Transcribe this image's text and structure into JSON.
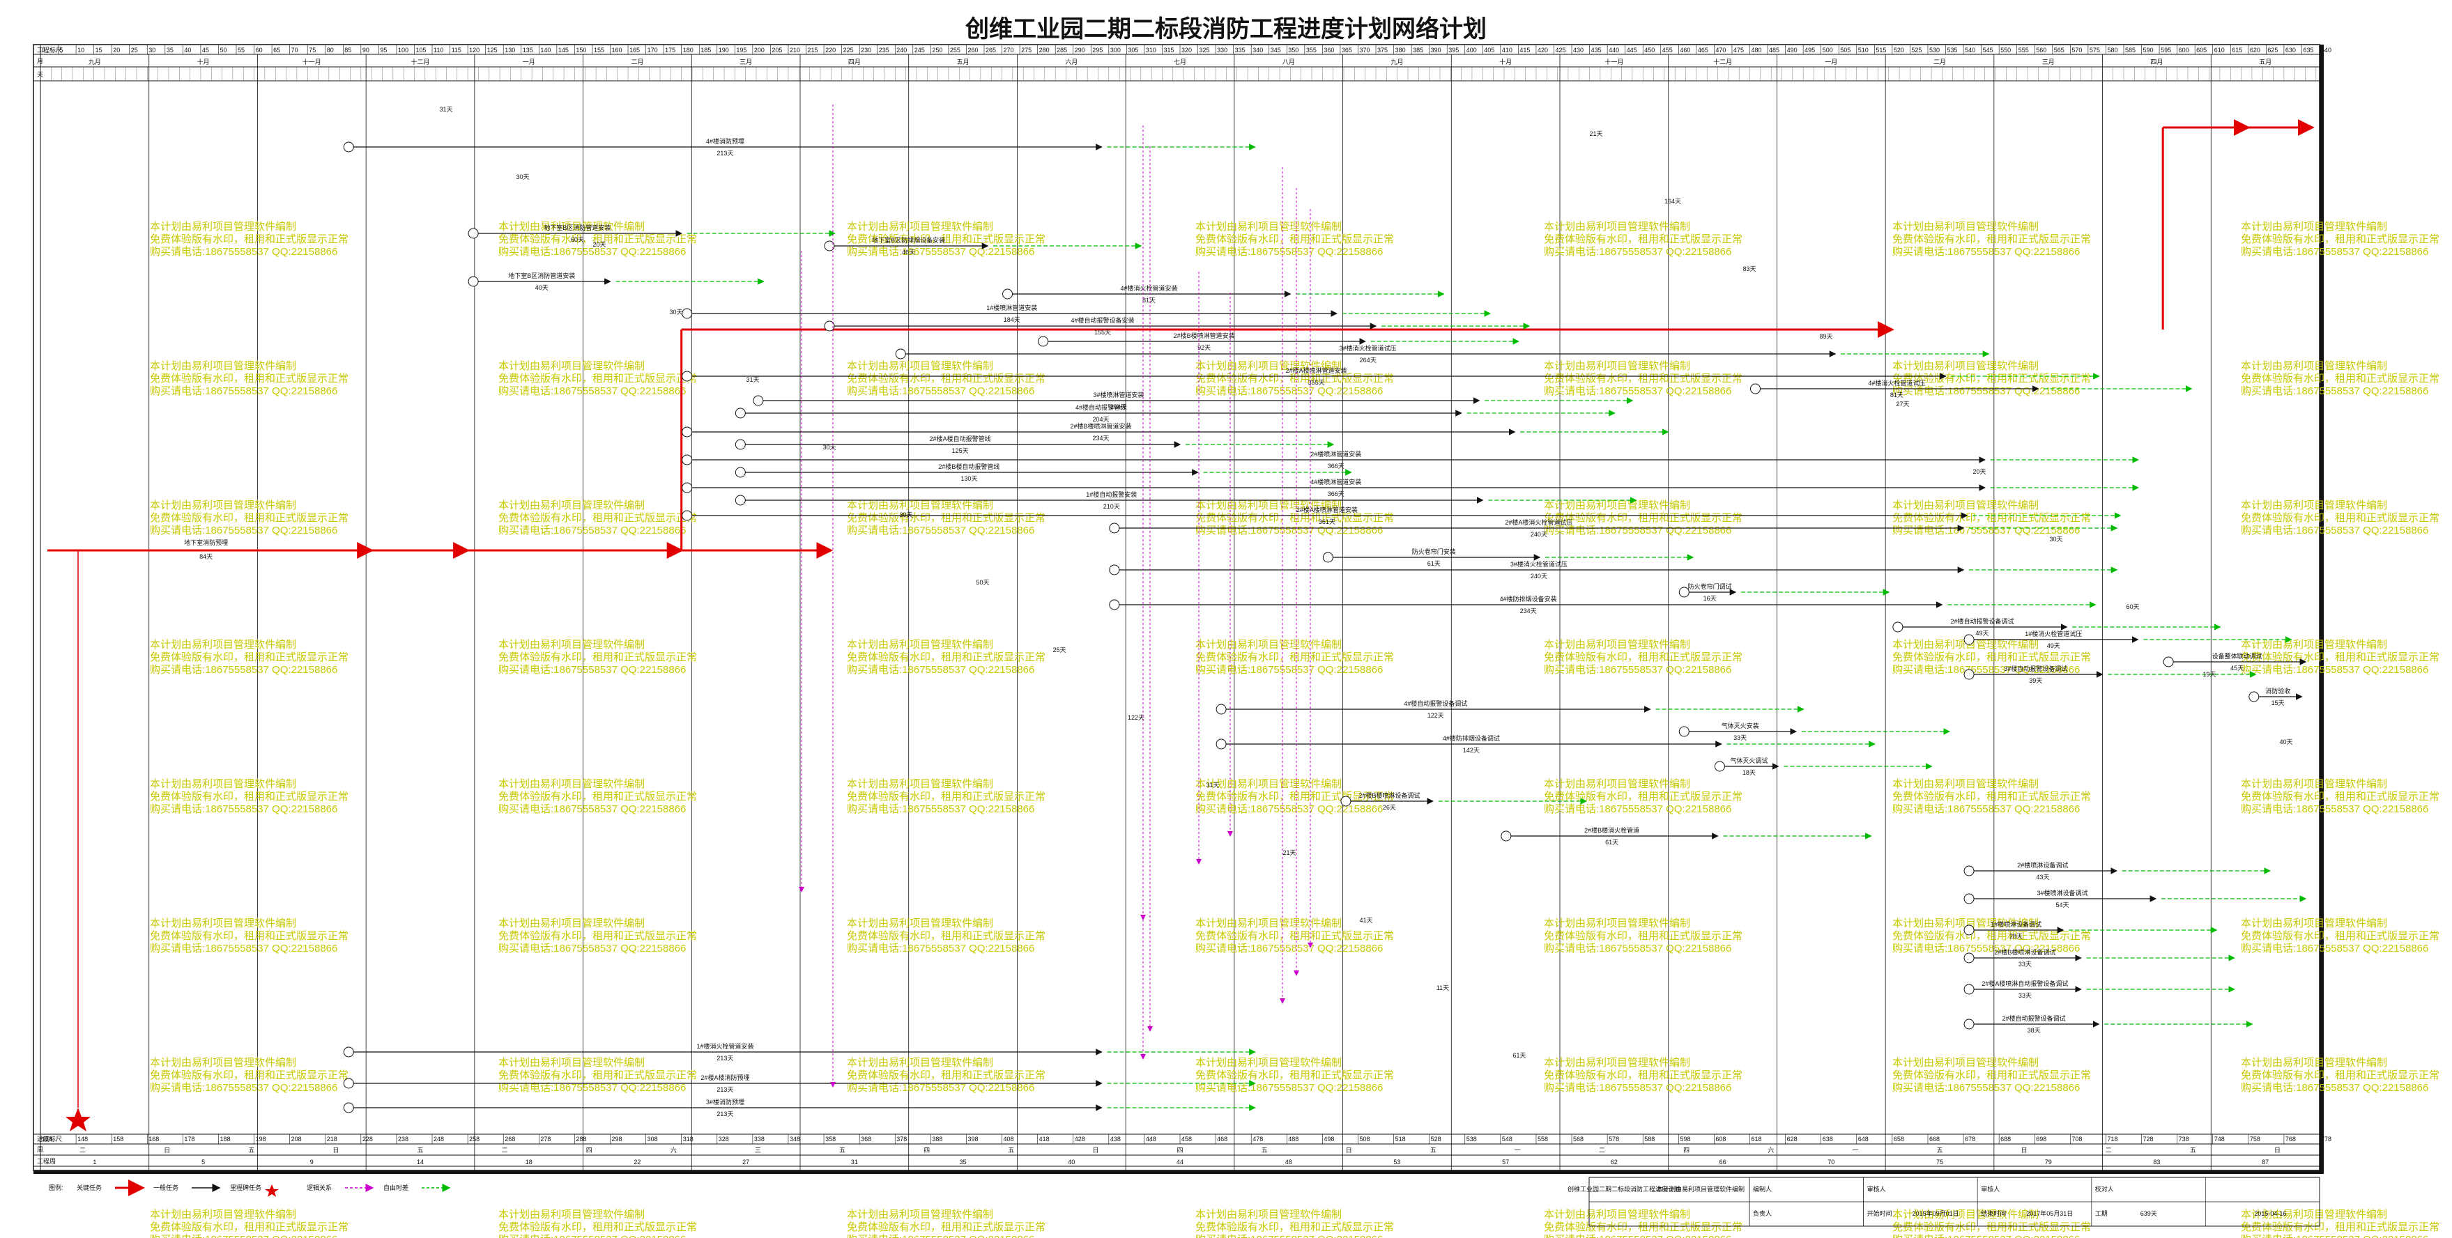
{
  "title": "创维工业园二期二标段消防工程进度计划网络计划",
  "header": {
    "rows": [
      "工程标尺",
      "月",
      "天"
    ],
    "months_top": [
      "九月",
      "十月",
      "十一月",
      "十二月",
      "一月",
      "二月",
      "三月",
      "四月",
      "五月",
      "六月",
      "七月",
      "八月",
      "九月",
      "十月",
      "十一月",
      "十二月",
      "一月",
      "二月",
      "三月",
      "四月",
      "五月"
    ],
    "scale_top": [
      "0",
      "5",
      "10",
      "15",
      "20",
      "25",
      "30",
      "35",
      "40",
      "45",
      "50",
      "55",
      "60",
      "65",
      "70",
      "75",
      "80",
      "85",
      "90",
      "95",
      "100",
      "105",
      "110",
      "115",
      "120",
      "125",
      "130",
      "135",
      "140",
      "145",
      "150",
      "155",
      "160",
      "165",
      "170",
      "175",
      "180",
      "185",
      "190",
      "195",
      "200",
      "205",
      "210",
      "215",
      "220",
      "225",
      "230",
      "235",
      "240",
      "245",
      "250",
      "255",
      "260",
      "265",
      "270",
      "275",
      "280",
      "285",
      "290",
      "295",
      "300",
      "305",
      "310",
      "315",
      "320",
      "325",
      "330",
      "335",
      "340",
      "345",
      "350",
      "355",
      "360",
      "365",
      "370",
      "375",
      "380",
      "385",
      "390",
      "395",
      "400",
      "405",
      "410",
      "415",
      "420",
      "425",
      "430",
      "435",
      "440",
      "445",
      "450",
      "455",
      "460",
      "465",
      "470",
      "475",
      "480",
      "485",
      "490",
      "495",
      "500",
      "505",
      "510",
      "515",
      "520",
      "525",
      "530",
      "535",
      "540",
      "545",
      "550",
      "555",
      "560",
      "565",
      "570",
      "575",
      "580",
      "585",
      "590",
      "595",
      "600",
      "605",
      "610",
      "615",
      "620",
      "625",
      "630",
      "635",
      "640"
    ]
  },
  "footer": {
    "rows": [
      "进度标尺",
      "周",
      "工程周"
    ],
    "scale_bottom": [
      "128",
      "148",
      "158",
      "168",
      "178",
      "188",
      "198",
      "208",
      "218",
      "228",
      "238",
      "248",
      "258",
      "268",
      "278",
      "288",
      "298",
      "308",
      "318",
      "328",
      "338",
      "348",
      "358",
      "368",
      "378",
      "388",
      "398",
      "408",
      "418",
      "428",
      "438",
      "448",
      "458",
      "468",
      "478",
      "488",
      "498",
      "508",
      "518",
      "528",
      "538",
      "548",
      "558",
      "568",
      "578",
      "588",
      "598",
      "608",
      "618",
      "628",
      "638",
      "648",
      "658",
      "668",
      "678",
      "688",
      "698",
      "708",
      "718",
      "728",
      "738",
      "748",
      "758",
      "768",
      "778"
    ],
    "week_labels": [
      "二",
      "日",
      "五",
      "日",
      "五",
      "二",
      "四",
      "六",
      "三",
      "五",
      "四",
      "五",
      "日",
      "四",
      "五",
      "日",
      "五",
      "一",
      "二",
      "四",
      "六",
      "一",
      "五",
      "日",
      "二",
      "五",
      "日"
    ],
    "project_weeks": [
      "1",
      "5",
      "9",
      "14",
      "18",
      "22",
      "27",
      "31",
      "35",
      "40",
      "44",
      "48",
      "53",
      "57",
      "62",
      "66",
      "70",
      "75",
      "79",
      "83",
      "87"
    ]
  },
  "legend": {
    "label": "图例:",
    "items": [
      "关键任务",
      "一般任务",
      "里程碑任务",
      "逻辑关系",
      "自由时差"
    ]
  },
  "info_table": {
    "project_name": "创维工业园二期二标段消防工程进度计划",
    "software_note": "本计划由易利项目管理软件编制",
    "fields": [
      {
        "k": "编制人",
        "v": ""
      },
      {
        "k": "审核人",
        "v": ""
      },
      {
        "k": "审核人",
        "v": ""
      },
      {
        "k": "校对人",
        "v": ""
      },
      {
        "k": "负责人",
        "v": ""
      },
      {
        "k": "开始时间",
        "v": "2015年09月01日"
      },
      {
        "k": "结束时间",
        "v": "2017年05月31日"
      },
      {
        "k": "工期",
        "v": "639天"
      },
      {
        "k": "",
        "v": "2015-04-16"
      }
    ]
  },
  "watermark": {
    "lines": [
      "本计划由易利项目管理软件编制",
      "免费体验版有水印，租用和正式版显示正常",
      "购买请电话:18675558537 QQ:22158866"
    ]
  },
  "tasks": [
    {
      "name": "地下室消防预埋",
      "dur": "84天"
    },
    {
      "name": "地下室B区消防管道安装",
      "dur": "60天"
    },
    {
      "name": "地下室B区消防管道安装",
      "dur": "40天"
    },
    {
      "name": "1#楼喷淋管道安装",
      "dur": "184天"
    },
    {
      "name": "2#楼B楼喷淋管道安装",
      "dur": "92天"
    },
    {
      "name": "2#楼A楼喷淋管道安装",
      "dur": "355天"
    },
    {
      "name": "3#楼喷淋管道安装",
      "dur": "204天"
    },
    {
      "name": "2#楼B楼喷淋管道安装",
      "dur": "234天"
    },
    {
      "name": "2#楼喷淋管道安装",
      "dur": "366天"
    },
    {
      "name": "4#楼喷淋管道安装",
      "dur": "366天"
    },
    {
      "name": "2#楼A楼喷淋管道安装",
      "dur": "361天"
    },
    {
      "name": "防火卷帘门安装",
      "dur": "61天"
    },
    {
      "name": "防火卷帘门调试",
      "dur": "16天"
    },
    {
      "name": "2#楼自动报警设备调试",
      "dur": "49天"
    },
    {
      "name": "设备整体联动调试",
      "dur": "45天"
    },
    {
      "name": "消防验收",
      "dur": "15天"
    },
    {
      "name": "气体灭火安装",
      "dur": "33天"
    },
    {
      "name": "气体灭火调试",
      "dur": "18天"
    },
    {
      "name": "2#楼B楼喷淋设备调试",
      "dur": "26天"
    },
    {
      "name": "2#楼B楼消火栓管道",
      "dur": "61天"
    },
    {
      "name": "2#楼喷淋设备调试",
      "dur": "43天"
    },
    {
      "name": "3#楼喷淋设备调试",
      "dur": "54天"
    },
    {
      "name": "1#楼喷淋设备调试",
      "dur": "28天"
    },
    {
      "name": "2#楼B楼喷淋设备调试",
      "dur": "33天"
    },
    {
      "name": "2#楼A楼喷淋自动报警设备调试",
      "dur": "33天"
    },
    {
      "name": "2#楼自动报警设备调试",
      "dur": "38天"
    },
    {
      "name": "1#楼消火栓管道安装",
      "dur": "213天"
    },
    {
      "name": "2#楼A楼消防预埋",
      "dur": "213天"
    },
    {
      "name": "3#楼消防预埋",
      "dur": "213天"
    },
    {
      "name": "4#楼消防预埋",
      "dur": "213天"
    },
    {
      "name": "地下室B区防排烟设备安装",
      "dur": "46天"
    },
    {
      "name": "4#楼消火栓管道安装",
      "dur": "81天"
    },
    {
      "name": "4#楼自动报警设备安装",
      "dur": "155天"
    },
    {
      "name": "3#楼消火栓管道试压",
      "dur": "264天"
    },
    {
      "name": "4#楼消火栓管道试压",
      "dur": "81天"
    },
    {
      "name": "4#楼自动报警管线",
      "dur": "204天"
    },
    {
      "name": "2#楼A楼自动报警管线",
      "dur": "125天"
    },
    {
      "name": "2#楼B楼自动报警管线",
      "dur": "130天"
    },
    {
      "name": "1#楼自动报警安装",
      "dur": "210天"
    },
    {
      "name": "2#楼A楼消火栓管道试压",
      "dur": "240天"
    },
    {
      "name": "3#楼消火栓管道试压",
      "dur": "240天"
    },
    {
      "name": "4#楼防排烟设备安装",
      "dur": "234天"
    },
    {
      "name": "1#楼消火栓管道试压",
      "dur": "49天"
    },
    {
      "name": "3#楼自动报警设备调试",
      "dur": "39天"
    },
    {
      "name": "4#楼自动报警设备调试",
      "dur": "122天"
    },
    {
      "name": "4#楼防排烟设备调试",
      "dur": "142天"
    }
  ],
  "float_labels": [
    "31天",
    "30天",
    "20天",
    "30天",
    "31天",
    "30天",
    "30天",
    "50天",
    "25天",
    "122天",
    "31天",
    "21天",
    "41天",
    "11天",
    "61天",
    "21天",
    "164天",
    "83天",
    "89天",
    "27天",
    "20天",
    "30天",
    "60天",
    "19天",
    "40天"
  ],
  "colors": {
    "critical": "#e00000",
    "normal": "#111111",
    "logic": "#cc00cc",
    "float": "#00bb00",
    "watermark": "#c8c800"
  }
}
